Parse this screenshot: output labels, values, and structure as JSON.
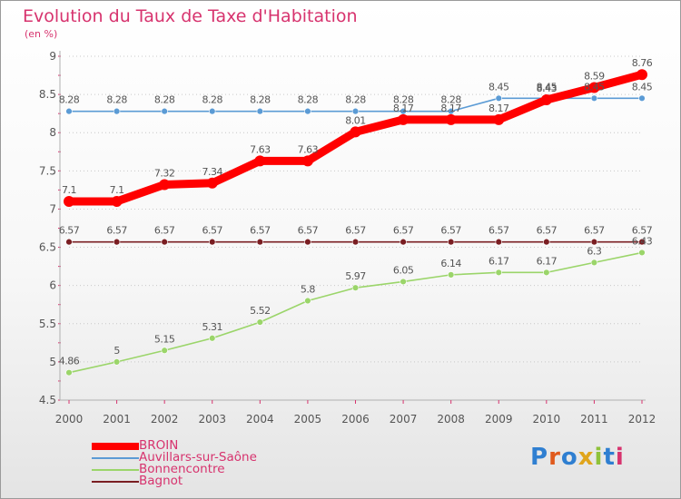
{
  "title": "Evolution du Taux de Taxe d'Habitation",
  "subtitle": "(en %)",
  "brand": {
    "text": "Proxiti",
    "letter_colors": [
      "#2f7fd1",
      "#e05a1c",
      "#2f7fd1",
      "#e0a51c",
      "#8fc23a",
      "#2f7fd1",
      "#d7336e"
    ]
  },
  "chart_data": {
    "type": "line",
    "title": "Evolution du Taux de Taxe d'Habitation",
    "ylabel": "(en %)",
    "xlabel": "",
    "x": [
      "2000",
      "2001",
      "2002",
      "2003",
      "2004",
      "2005",
      "2006",
      "2007",
      "2008",
      "2009",
      "2010",
      "2011",
      "2012"
    ],
    "ylim": [
      4.5,
      9
    ],
    "yticks": [
      "4.5",
      "5",
      "5.5",
      "6",
      "6.5",
      "7",
      "7.5",
      "8",
      "8.5",
      "9"
    ],
    "grid": "horizontal dashed",
    "legend": "bottom-left",
    "series": [
      {
        "name": "BROIN",
        "color": "#ff0000",
        "values": [
          7.1,
          7.1,
          7.32,
          7.34,
          7.63,
          7.63,
          8.01,
          8.17,
          8.17,
          8.17,
          8.43,
          8.59,
          8.76
        ],
        "labels": [
          "7.1",
          "7.1",
          "7.32",
          "7.34",
          "7.63",
          "7.63",
          "8.01",
          "8.17",
          "8.17",
          "8.17",
          "8.43",
          "8.59",
          "8.76"
        ]
      },
      {
        "name": "Auvillars-sur-Saône",
        "color": "#5b9bd5",
        "values": [
          8.28,
          8.28,
          8.28,
          8.28,
          8.28,
          8.28,
          8.28,
          8.28,
          8.28,
          8.45,
          8.45,
          8.45,
          8.45
        ],
        "labels": [
          "8.28",
          "8.28",
          "8.28",
          "8.28",
          "8.28",
          "8.28",
          "8.28",
          "8.28",
          "8.28",
          "8.45",
          "8.45",
          "8.45",
          "8.45"
        ]
      },
      {
        "name": "Bonnencontre",
        "color": "#9bd56a",
        "values": [
          4.86,
          5,
          5.15,
          5.31,
          5.52,
          5.8,
          5.97,
          6.05,
          6.14,
          6.17,
          6.17,
          6.3,
          6.43
        ],
        "labels": [
          "4.86",
          "5",
          "5.15",
          "5.31",
          "5.52",
          "5.8",
          "5.97",
          "6.05",
          "6.14",
          "6.17",
          "6.17",
          "6.3",
          "6.43"
        ]
      },
      {
        "name": "Bagnot",
        "color": "#7a1e22",
        "values": [
          6.57,
          6.57,
          6.57,
          6.57,
          6.57,
          6.57,
          6.57,
          6.57,
          6.57,
          6.57,
          6.57,
          6.57,
          6.57
        ],
        "labels": [
          "6.57",
          "6.57",
          "6.57",
          "6.57",
          "6.57",
          "6.57",
          "6.57",
          "6.57",
          "6.57",
          "6.57",
          "6.57",
          "6.57",
          "6.57"
        ]
      }
    ]
  }
}
